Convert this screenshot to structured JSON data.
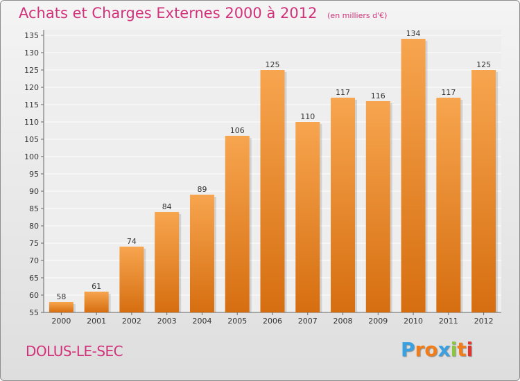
{
  "header": {
    "title": "Achats et Charges Externes 2000 à 2012",
    "unit": "(en milliers d'€)"
  },
  "footer": {
    "place": "DOLUS-LE-SEC",
    "brand_letters": [
      "P",
      "r",
      "o",
      "x",
      "i",
      "t",
      "i"
    ],
    "brand_colors": [
      "#3aa0e0",
      "#f07d1a",
      "#f07d1a",
      "#3aa0e0",
      "#8cc63f",
      "#f07d1a",
      "#e2352e"
    ]
  },
  "colors": {
    "bar_top": "#f7a54f",
    "bar_bottom": "#d66e10",
    "accent": "#d2327a"
  },
  "chart_data": {
    "type": "bar",
    "title": "Achats et Charges Externes 2000 à 2012",
    "subtitle": "(en milliers d'€)",
    "categories": [
      "2000",
      "2001",
      "2002",
      "2003",
      "2004",
      "2005",
      "2006",
      "2007",
      "2008",
      "2009",
      "2010",
      "2011",
      "2012"
    ],
    "values": [
      58,
      61,
      74,
      84,
      89,
      106,
      125,
      110,
      117,
      116,
      134,
      117,
      125
    ],
    "ylim": [
      55,
      135
    ],
    "yticks": [
      55,
      60,
      65,
      70,
      75,
      80,
      85,
      90,
      95,
      100,
      105,
      110,
      115,
      120,
      125,
      130,
      135
    ],
    "grid": true
  }
}
